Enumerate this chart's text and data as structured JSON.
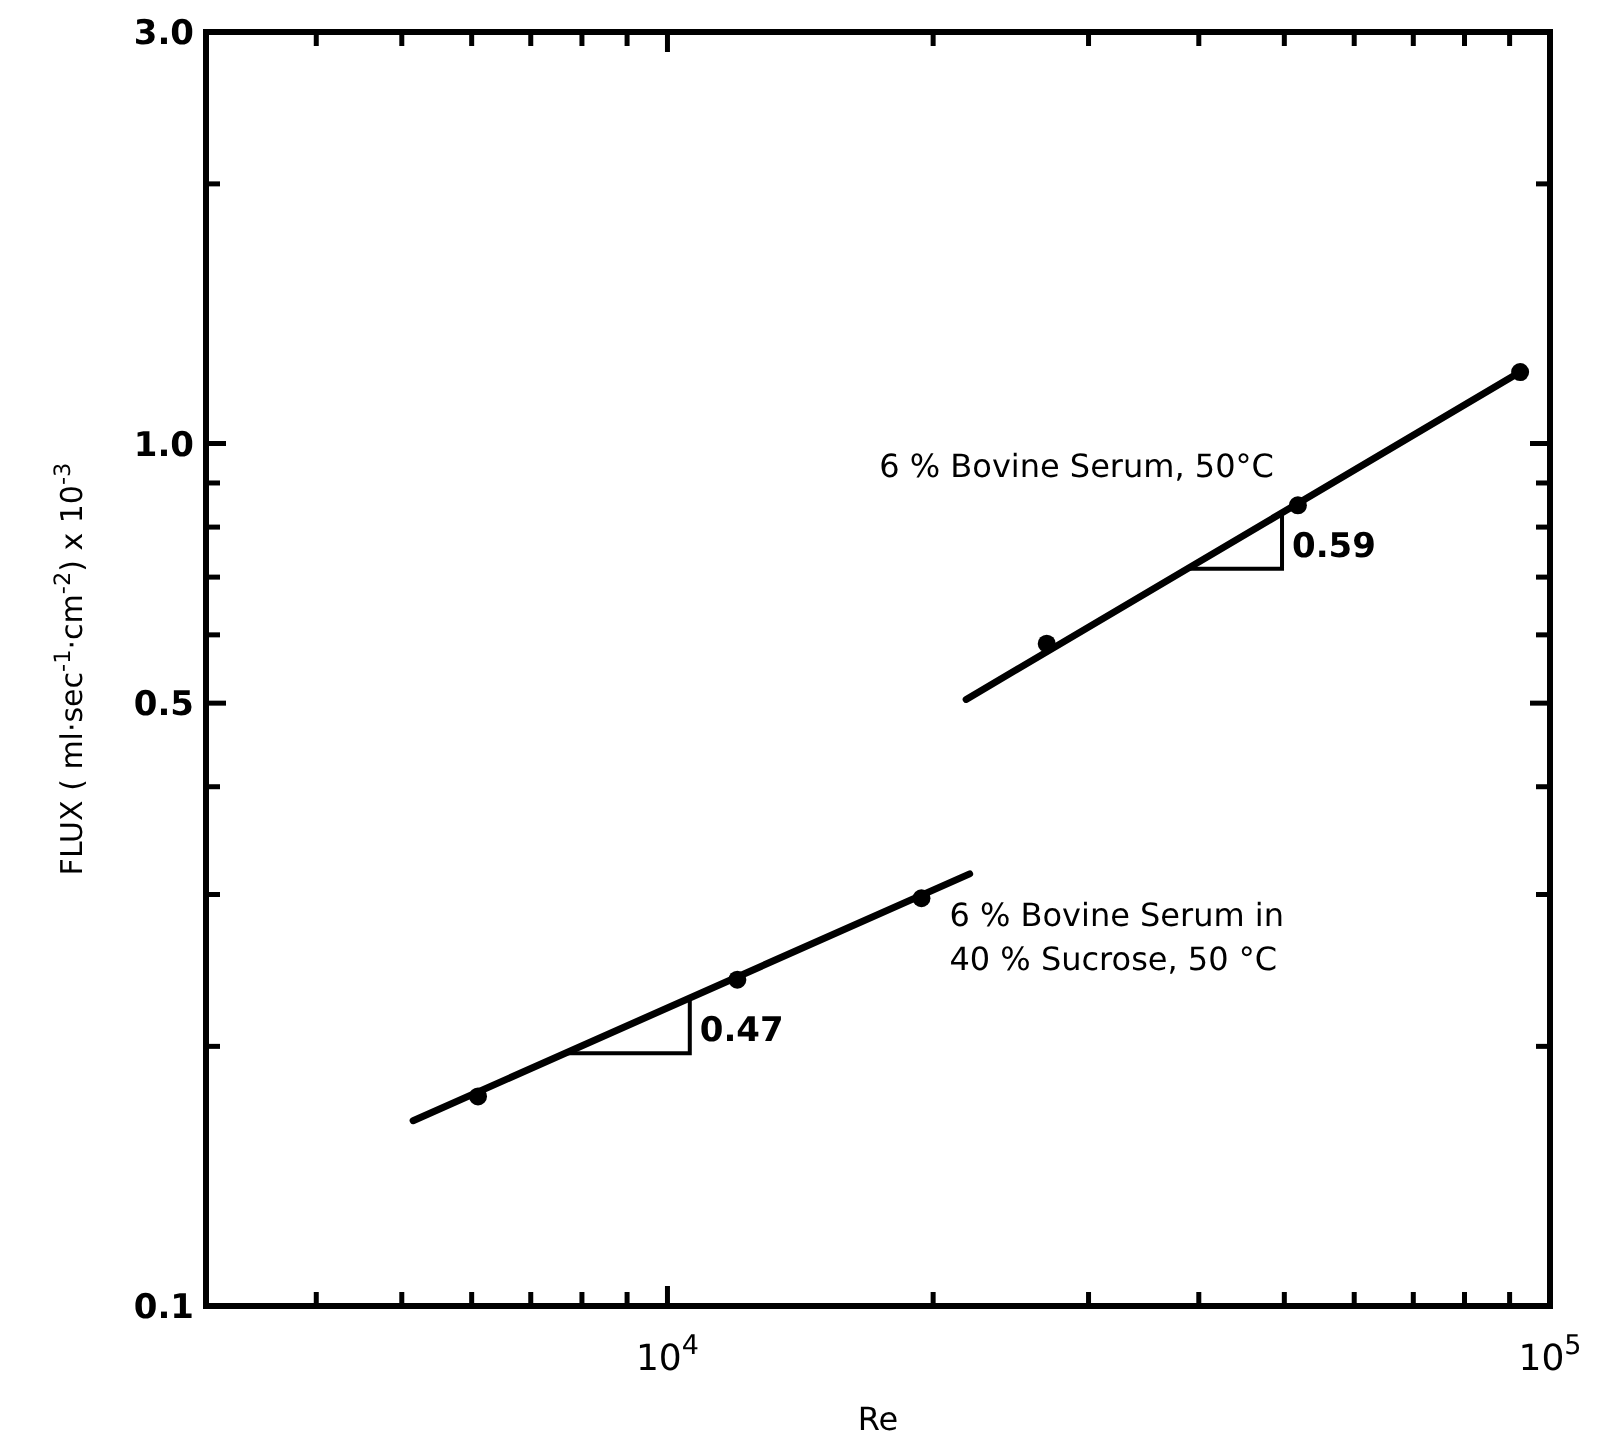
{
  "chart_data": {
    "type": "scatter",
    "xlabel": "Re",
    "ylabel": "FLUX ( ml·sec$^{-1}$·cm$^{-2}$) x 10$^{-3}$",
    "log": "xy",
    "xlim": [
      3000,
      100000
    ],
    "xticks": [
      {
        "value": 4000,
        "label": null
      },
      {
        "value": 5000,
        "label": null
      },
      {
        "value": 6000,
        "label": null
      },
      {
        "value": 7000,
        "label": null
      },
      {
        "value": 8000,
        "label": null
      },
      {
        "value": 9000,
        "label": null
      },
      {
        "value": 10000,
        "label": "10$^{4}$"
      },
      {
        "value": 20000,
        "label": null
      },
      {
        "value": 30000,
        "label": null
      },
      {
        "value": 40000,
        "label": null
      },
      {
        "value": 50000,
        "label": null
      },
      {
        "value": 60000,
        "label": null
      },
      {
        "value": 70000,
        "label": null
      },
      {
        "value": 80000,
        "label": null
      },
      {
        "value": 90000,
        "label": null
      },
      {
        "value": 100000,
        "label": "10$^{5}$"
      }
    ],
    "ylim": [
      0.1,
      3
    ],
    "yticks": [
      {
        "value": 0.1,
        "label": "0.1"
      },
      {
        "value": 0.2,
        "label": null
      },
      {
        "value": 0.3,
        "label": null
      },
      {
        "value": 0.4,
        "label": null
      },
      {
        "value": 0.5,
        "label": "0.5"
      },
      {
        "value": 0.6,
        "label": null
      },
      {
        "value": 0.7,
        "label": null
      },
      {
        "value": 0.8,
        "label": null
      },
      {
        "value": 0.9,
        "label": null
      },
      {
        "value": 1,
        "label": "1.0"
      },
      {
        "value": 2,
        "label": null
      },
      {
        "value": 3,
        "label": "3.0"
      }
    ],
    "grid": false,
    "marker": "circle",
    "series": [
      {
        "name": "6 % Bovine Serum in\n40 % Sucrose, 50 °C",
        "color": "#000000",
        "x": [
          6100,
          12000,
          19400
        ],
        "values": [
          0.175,
          0.239,
          0.297
        ]
      },
      {
        "name": "6 % Bovine Serum, 50°C",
        "color": "#000000",
        "x": [
          26900,
          51800,
          92500
        ],
        "values": [
          0.586,
          0.848,
          1.21
        ]
      },
      {
        "type": "line",
        "color": "#000000",
        "line_style": "solid",
        "marker": "none",
        "x": [
          5150,
          22000
        ],
        "values": [
          0.164,
          0.317
        ]
      },
      {
        "type": "line",
        "color": "#000000",
        "line_style": "solid",
        "marker": "none",
        "x": [
          21800,
          92500
        ],
        "values": [
          0.505,
          1.21
        ]
      }
    ],
    "annotations": [
      {
        "text": "0.47",
        "x": 10600,
        "y": 0.228
      },
      {
        "text": "0.59",
        "x": 49700,
        "y": 0.831
      }
    ]
  }
}
